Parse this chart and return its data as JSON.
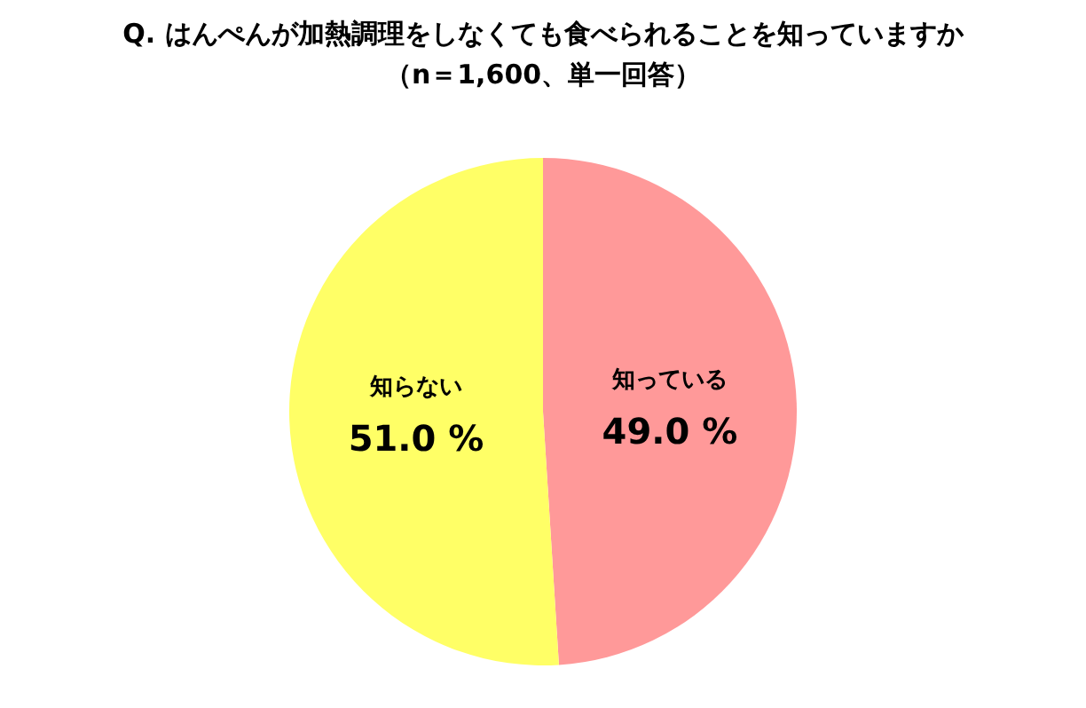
{
  "chart_data": {
    "type": "pie",
    "title": "Q. はんぺんが加熱調理をしなくても食べられることを知っていますか",
    "subtitle": "（n＝1,600、単一回答）",
    "categories": [
      "知っている",
      "知らない"
    ],
    "values": [
      49.0,
      51.0
    ],
    "value_labels": [
      "49.0 %",
      "51.0 %"
    ],
    "colors": [
      "#ff9999",
      "#ffff66"
    ],
    "legend": false
  }
}
